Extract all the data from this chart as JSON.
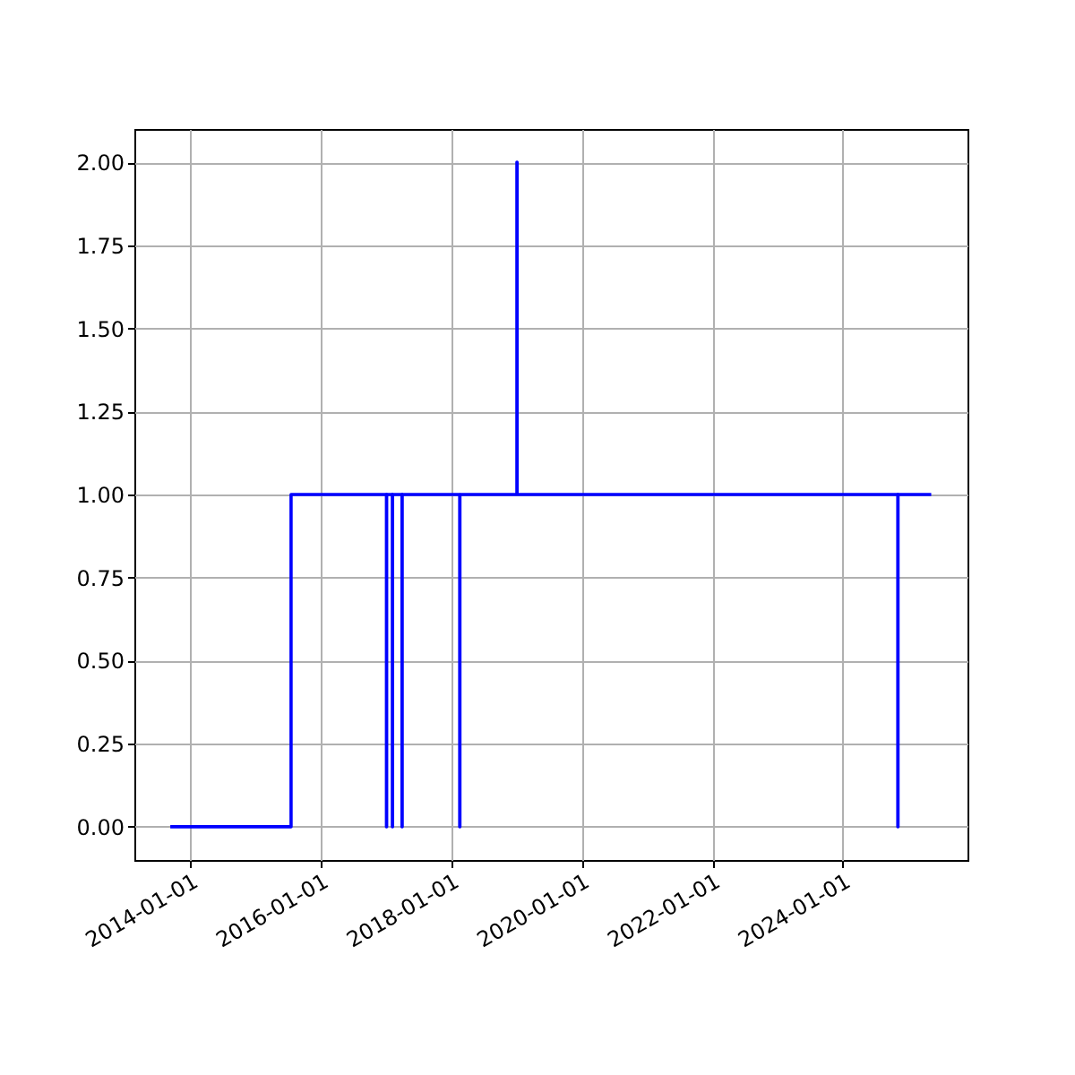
{
  "chart_data": {
    "type": "step",
    "x": [
      "2013-09-10",
      "2015-07-18",
      "2017-01-02",
      "2017-01-03",
      "2017-02-04",
      "2017-02-05",
      "2017-03-30",
      "2017-03-31",
      "2018-02-16",
      "2018-02-17",
      "2019-01-02",
      "2019-01-03",
      "2024-11-03",
      "2024-11-04",
      "2025-05-09"
    ],
    "series": [
      {
        "color": "#0000ff",
        "values": [
          0,
          1,
          0,
          1,
          0,
          1,
          0,
          1,
          0,
          1,
          2,
          1,
          0,
          1,
          1
        ]
      }
    ],
    "xlim": [
      "2013-02-21",
      "2025-11-28"
    ],
    "xticks": [
      "2014-01-01",
      "2016-01-01",
      "2018-01-01",
      "2020-01-01",
      "2022-01-01",
      "2024-01-01"
    ],
    "ylim": [
      -0.1,
      2.1
    ],
    "yticks": [
      {
        "value": 0,
        "label": "0.00"
      },
      {
        "value": 0.25,
        "label": "0.25"
      },
      {
        "value": 0.5,
        "label": "0.50"
      },
      {
        "value": 0.75,
        "label": "0.75"
      },
      {
        "value": 1,
        "label": "1.00"
      },
      {
        "value": 1.25,
        "label": "1.25"
      },
      {
        "value": 1.5,
        "label": "1.50"
      },
      {
        "value": 1.75,
        "label": "1.75"
      },
      {
        "value": 2,
        "label": "2.00"
      }
    ],
    "grid": true
  }
}
